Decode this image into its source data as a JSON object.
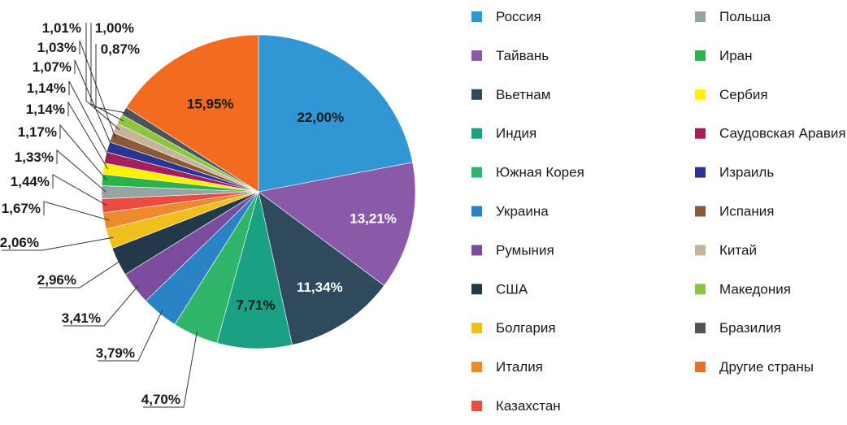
{
  "chart_data": {
    "type": "pie",
    "title": "",
    "series": [
      {
        "name": "Россия",
        "value": 22.0,
        "label": "22,00%",
        "color": "#3096d4"
      },
      {
        "name": "Тайвань",
        "value": 13.21,
        "label": "13,21%",
        "color": "#8a5aa8"
      },
      {
        "name": "Вьетнам",
        "value": 11.34,
        "label": "11,34%",
        "color": "#2e4a5c"
      },
      {
        "name": "Индия",
        "value": 7.71,
        "label": "7,71%",
        "color": "#1aa082"
      },
      {
        "name": "Южная Корея",
        "value": 4.7,
        "label": "4,70%",
        "color": "#31b56a"
      },
      {
        "name": "Украина",
        "value": 3.79,
        "label": "3,79%",
        "color": "#2a83c4"
      },
      {
        "name": "Румыния",
        "value": 3.41,
        "label": "3,41%",
        "color": "#7c4d9e"
      },
      {
        "name": "США",
        "value": 2.96,
        "label": "2,96%",
        "color": "#22394a"
      },
      {
        "name": "Болгария",
        "value": 2.06,
        "label": "2,06%",
        "color": "#f0bf1e"
      },
      {
        "name": "Италия",
        "value": 1.67,
        "label": "1,67%",
        "color": "#ee8a2c"
      },
      {
        "name": "Казахстан",
        "value": 1.44,
        "label": "1,44%",
        "color": "#ec4b3f"
      },
      {
        "name": "Польша",
        "value": 1.33,
        "label": "1,33%",
        "color": "#95a3a3"
      },
      {
        "name": "Иран",
        "value": 1.17,
        "label": "1,17%",
        "color": "#2db14b"
      },
      {
        "name": "Сербия",
        "value": 1.14,
        "label": "1,14%",
        "color": "#fff200"
      },
      {
        "name": "Саудовская Аравия",
        "value": 1.14,
        "label": "1,14%",
        "color": "#a51f5c"
      },
      {
        "name": "Израиль",
        "value": 1.07,
        "label": "1,07%",
        "color": "#2a3593"
      },
      {
        "name": "Испания",
        "value": 1.03,
        "label": "1,03%",
        "color": "#8c5a3a"
      },
      {
        "name": "Китай",
        "value": 1.01,
        "label": "1,01%",
        "color": "#c4b59a"
      },
      {
        "name": "Македония",
        "value": 1.0,
        "label": "1,00%",
        "color": "#8cc63f"
      },
      {
        "name": "Бразилия",
        "value": 0.87,
        "label": "0,87%",
        "color": "#4d5459"
      },
      {
        "name": "Другие страны",
        "value": 15.95,
        "label": "15,95%",
        "color": "#f26b21"
      }
    ],
    "legend_placement": "right",
    "legend_columns": [
      [
        "Россия",
        "Тайвань",
        "Вьетнам",
        "Индия",
        "Южная Корея",
        "Украина",
        "Румыния",
        "США",
        "Болгария",
        "Италия",
        "Казахстан"
      ],
      [
        "Польша",
        "Иран",
        "Сербия",
        "Саудовская Аравия",
        "Израиль",
        "Испания",
        "Китай",
        "Македония",
        "Бразилия",
        "Другие страны"
      ]
    ]
  }
}
